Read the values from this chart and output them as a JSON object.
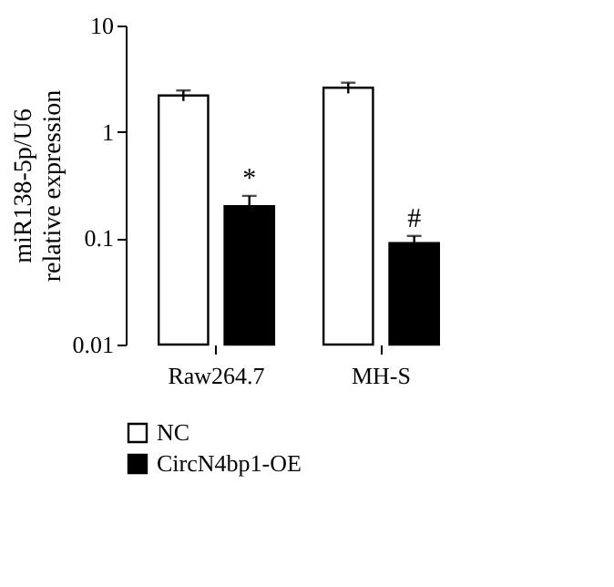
{
  "chart_data": {
    "type": "bar",
    "ylabel": "miR138-5p/U6\nrelative expression",
    "categories": [
      "Raw264.7",
      "MH-S"
    ],
    "series": [
      {
        "name": "NC",
        "color": "#ffffff",
        "values": [
          2.2,
          2.6
        ],
        "errors": [
          0.25,
          0.3
        ]
      },
      {
        "name": "CircN4bp1-OE",
        "color": "#000000",
        "values": [
          0.2,
          0.09
        ],
        "errors": [
          0.05,
          0.015
        ]
      }
    ],
    "log": true,
    "ylim": [
      0.01,
      10
    ],
    "yticks": [
      0.01,
      0.1,
      1,
      10
    ],
    "legend": "bottom",
    "grid": false,
    "annotations": [
      {
        "text": "*",
        "x": "Raw264.7",
        "y": 0.25
      },
      {
        "text": "#",
        "x": "MH-S",
        "y": 0.105
      }
    ]
  }
}
